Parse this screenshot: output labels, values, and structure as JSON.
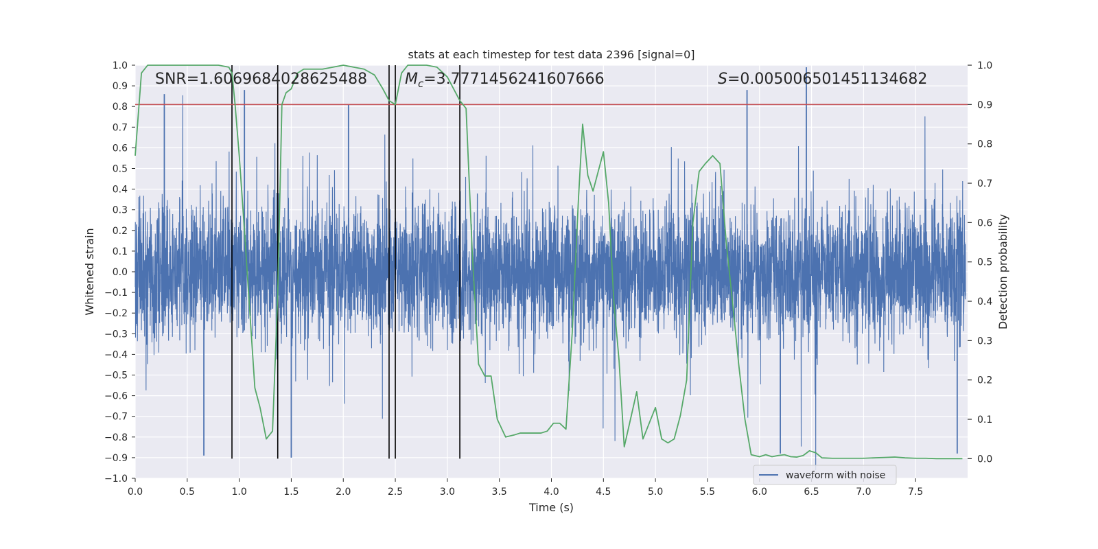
{
  "chart_data": {
    "type": "line",
    "title": "stats at each timestep for test data 2396 [signal=0]",
    "xlabel": "Time (s)",
    "ylabel": "Whitened strain",
    "y2label": "Detection probability",
    "xlim": [
      0.0,
      8.0
    ],
    "ylim": [
      -1.0,
      1.0
    ],
    "y2lim": [
      -0.05,
      1.0
    ],
    "xticks": [
      "0.0",
      "0.5",
      "1.0",
      "1.5",
      "2.0",
      "2.5",
      "3.0",
      "3.5",
      "4.0",
      "4.5",
      "5.0",
      "5.5",
      "6.0",
      "6.5",
      "7.0",
      "7.5"
    ],
    "yticks": [
      "1.0",
      "0.9",
      "0.8",
      "0.7",
      "0.6",
      "0.5",
      "0.4",
      "0.3",
      "0.2",
      "0.1",
      "0.0",
      "−0.1",
      "−0.2",
      "−0.3",
      "−0.4",
      "−0.5",
      "−0.6",
      "−0.7",
      "−0.8",
      "−0.9",
      "−1.0"
    ],
    "y2ticks": [
      "1.0",
      "0.9",
      "0.8",
      "0.7",
      "0.6",
      "0.5",
      "0.4",
      "0.3",
      "0.2",
      "0.1",
      "0.0"
    ],
    "annotations": {
      "snr": "SNR=1.6069684028625488",
      "mc_symbol": "M",
      "mc_sub": "c",
      "mc_value": "=3.7771456241607666",
      "s_symbol": "S",
      "s_value": "=0.005006501451134682"
    },
    "threshold": 0.9,
    "vlines": [
      0.93,
      1.37,
      2.44,
      2.5,
      3.12
    ],
    "legend": {
      "label": "waveform with noise",
      "placement": "lower-right"
    },
    "series": [
      {
        "name": "waveform with noise",
        "color": "#4c72b0",
        "kind": "noise",
        "envelope": 0.45,
        "peak_markers": [
          [
            0.28,
            0.86
          ],
          [
            0.66,
            -0.89
          ],
          [
            1.05,
            0.88
          ],
          [
            1.5,
            -0.9
          ],
          [
            2.05,
            0.81
          ],
          [
            5.88,
            0.88
          ],
          [
            6.45,
            0.99
          ],
          [
            6.2,
            -0.88
          ],
          [
            7.9,
            -0.88
          ]
        ]
      },
      {
        "name": "",
        "color": "#55a868",
        "axis": "right",
        "x": [
          0.0,
          0.06,
          0.12,
          0.2,
          0.3,
          0.4,
          0.5,
          0.6,
          0.7,
          0.8,
          0.9,
          0.93,
          0.96,
          1.0,
          1.05,
          1.1,
          1.15,
          1.2,
          1.26,
          1.32,
          1.37,
          1.41,
          1.45,
          1.5,
          1.56,
          1.62,
          1.7,
          1.8,
          1.9,
          2.0,
          2.1,
          2.2,
          2.3,
          2.38,
          2.44,
          2.47,
          2.5,
          2.56,
          2.62,
          2.7,
          2.8,
          2.9,
          3.0,
          3.06,
          3.12,
          3.18,
          3.24,
          3.3,
          3.36,
          3.42,
          3.48,
          3.56,
          3.64,
          3.7,
          3.8,
          3.9,
          3.96,
          4.02,
          4.08,
          4.14,
          4.2,
          4.26,
          4.3,
          4.35,
          4.4,
          4.45,
          4.5,
          4.55,
          4.6,
          4.65,
          4.7,
          4.76,
          4.82,
          4.88,
          4.94,
          5.0,
          5.06,
          5.12,
          5.18,
          5.24,
          5.3,
          5.36,
          5.42,
          5.48,
          5.55,
          5.62,
          5.68,
          5.74,
          5.8,
          5.86,
          5.92,
          6.0,
          6.06,
          6.12,
          6.18,
          6.24,
          6.3,
          6.36,
          6.42,
          6.48,
          6.54,
          6.6,
          6.7,
          6.8,
          6.9,
          7.0,
          7.1,
          7.2,
          7.3,
          7.4,
          7.5,
          7.6,
          7.7,
          7.8,
          7.95
        ],
        "y": [
          0.77,
          0.98,
          1.0,
          1.0,
          1.0,
          1.0,
          1.0,
          1.0,
          1.0,
          1.0,
          0.995,
          0.98,
          0.9,
          0.77,
          0.58,
          0.38,
          0.18,
          0.13,
          0.05,
          0.07,
          0.42,
          0.9,
          0.93,
          0.94,
          0.98,
          0.99,
          0.99,
          0.99,
          0.995,
          1.0,
          0.995,
          0.99,
          0.975,
          0.94,
          0.91,
          0.905,
          0.9,
          0.98,
          1.0,
          1.0,
          1.0,
          0.995,
          0.97,
          0.94,
          0.91,
          0.89,
          0.52,
          0.24,
          0.21,
          0.21,
          0.1,
          0.055,
          0.06,
          0.065,
          0.065,
          0.065,
          0.07,
          0.09,
          0.09,
          0.075,
          0.32,
          0.66,
          0.85,
          0.72,
          0.68,
          0.73,
          0.78,
          0.65,
          0.4,
          0.25,
          0.03,
          0.1,
          0.17,
          0.05,
          0.09,
          0.13,
          0.05,
          0.04,
          0.05,
          0.11,
          0.2,
          0.6,
          0.73,
          0.75,
          0.77,
          0.75,
          0.55,
          0.4,
          0.24,
          0.1,
          0.01,
          0.005,
          0.01,
          0.005,
          0.008,
          0.01,
          0.005,
          0.004,
          0.008,
          0.02,
          0.015,
          0.002,
          0.001,
          0.001,
          0.001,
          0.001,
          0.002,
          0.003,
          0.004,
          0.002,
          0.001,
          0.001,
          0.0,
          0.0,
          0.0
        ]
      }
    ],
    "colors": {
      "background": "#eaeaf2",
      "grid": "#ffffff",
      "threshold": "#c44e52",
      "vline": "#000000"
    }
  }
}
